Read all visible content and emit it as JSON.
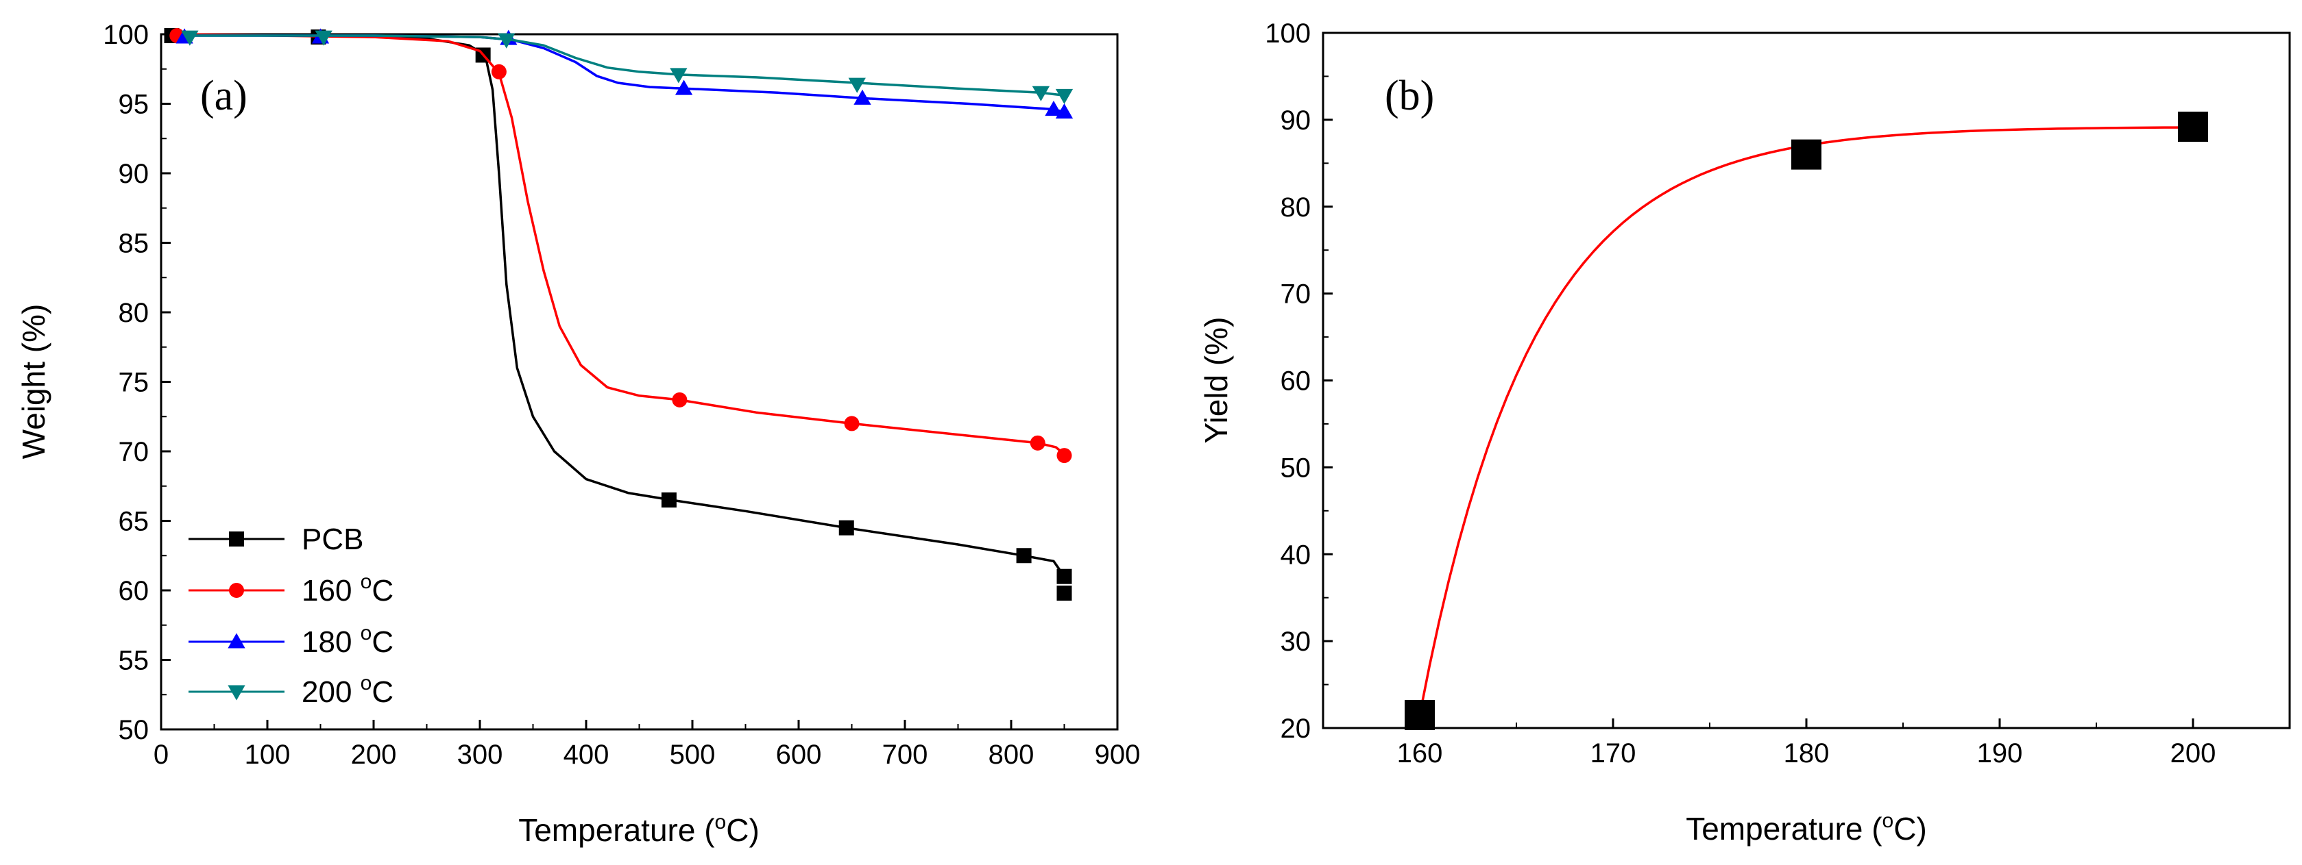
{
  "chart_data": [
    {
      "type": "line",
      "panel_label": "(a)",
      "title": "",
      "xlabel_main": "Temperature (",
      "xlabel_sup": "o",
      "xlabel_end": "C)",
      "ylabel": "Weight (%)",
      "xlim": [
        0,
        900
      ],
      "ylim": [
        50,
        100
      ],
      "xticks": [
        0,
        100,
        200,
        300,
        400,
        500,
        600,
        700,
        800,
        900
      ],
      "yticks": [
        50,
        55,
        60,
        65,
        70,
        75,
        80,
        85,
        90,
        95,
        100
      ],
      "legend_position": "bottom-left",
      "series": [
        {
          "name": "PCB",
          "legend_main": "PCB",
          "legend_sup": "",
          "legend_end": "",
          "color": "#000000",
          "marker": "square",
          "curve": [
            [
              10,
              100
            ],
            [
              150,
              99.9
            ],
            [
              250,
              99.7
            ],
            [
              290,
              99.2
            ],
            [
              305,
              98.5
            ],
            [
              312,
              96
            ],
            [
              318,
              90
            ],
            [
              325,
              82
            ],
            [
              335,
              76
            ],
            [
              350,
              72.5
            ],
            [
              370,
              70
            ],
            [
              400,
              68
            ],
            [
              440,
              67
            ],
            [
              480,
              66.5
            ],
            [
              550,
              65.7
            ],
            [
              645,
              64.5
            ],
            [
              750,
              63.3
            ],
            [
              812,
              62.5
            ],
            [
              840,
              62.1
            ],
            [
              850,
              61
            ]
          ],
          "markers": [
            [
              10,
              99.9
            ],
            [
              148,
              99.8
            ],
            [
              303,
              98.5
            ],
            [
              478,
              66.5
            ],
            [
              645,
              64.5
            ],
            [
              812,
              62.5
            ],
            [
              850,
              61
            ],
            [
              850,
              59.8
            ]
          ]
        },
        {
          "name": "160 °C",
          "legend_main": "160 ",
          "legend_sup": "o",
          "legend_end": "C",
          "color": "#ff0000",
          "marker": "circle",
          "curve": [
            [
              15,
              100
            ],
            [
              200,
              99.8
            ],
            [
              270,
              99.5
            ],
            [
              300,
              98.8
            ],
            [
              318,
              97.2
            ],
            [
              330,
              94
            ],
            [
              345,
              88
            ],
            [
              360,
              83
            ],
            [
              375,
              79
            ],
            [
              395,
              76.2
            ],
            [
              420,
              74.6
            ],
            [
              450,
              74
            ],
            [
              488,
              73.7
            ],
            [
              560,
              72.8
            ],
            [
              650,
              72
            ],
            [
              750,
              71.2
            ],
            [
              825,
              70.6
            ],
            [
              842,
              70.3
            ],
            [
              850,
              69.8
            ]
          ],
          "markers": [
            [
              15,
              99.9
            ],
            [
              318,
              97.3
            ],
            [
              488,
              73.7
            ],
            [
              650,
              72
            ],
            [
              825,
              70.6
            ],
            [
              850,
              69.7
            ]
          ]
        },
        {
          "name": "180 °C",
          "legend_main": "180 ",
          "legend_sup": "o",
          "legend_end": "C",
          "color": "#0000ff",
          "marker": "triangle-up",
          "curve": [
            [
              20,
              99.9
            ],
            [
              200,
              99.9
            ],
            [
              300,
              99.8
            ],
            [
              330,
              99.6
            ],
            [
              360,
              99
            ],
            [
              390,
              98
            ],
            [
              410,
              97
            ],
            [
              430,
              96.5
            ],
            [
              460,
              96.2
            ],
            [
              492,
              96.1
            ],
            [
              580,
              95.8
            ],
            [
              660,
              95.4
            ],
            [
              760,
              95
            ],
            [
              840,
              94.6
            ],
            [
              850,
              94.4
            ]
          ],
          "markers": [
            [
              22,
              99.8
            ],
            [
              150,
              99.8
            ],
            [
              327,
              99.7
            ],
            [
              492,
              96.1
            ],
            [
              660,
              95.4
            ],
            [
              840,
              94.6
            ],
            [
              850,
              94.4
            ]
          ]
        },
        {
          "name": "200 °C",
          "legend_main": "200 ",
          "legend_sup": "o",
          "legend_end": "C",
          "color": "#008080",
          "marker": "triangle-down",
          "curve": [
            [
              25,
              99.9
            ],
            [
              200,
              99.9
            ],
            [
              300,
              99.8
            ],
            [
              330,
              99.6
            ],
            [
              360,
              99.2
            ],
            [
              390,
              98.3
            ],
            [
              420,
              97.6
            ],
            [
              450,
              97.3
            ],
            [
              487,
              97.1
            ],
            [
              560,
              96.9
            ],
            [
              655,
              96.5
            ],
            [
              750,
              96.1
            ],
            [
              828,
              95.8
            ],
            [
              850,
              95.6
            ]
          ],
          "markers": [
            [
              27,
              99.8
            ],
            [
              153,
              99.8
            ],
            [
              325,
              99.6
            ],
            [
              487,
              97.1
            ],
            [
              655,
              96.4
            ],
            [
              828,
              95.8
            ],
            [
              850,
              95.6
            ]
          ]
        }
      ]
    },
    {
      "type": "line",
      "panel_label": "(b)",
      "title": "",
      "xlabel_main": "Temperature (",
      "xlabel_sup": "o",
      "xlabel_end": "C)",
      "ylabel": "Yield (%)",
      "xlim": [
        155,
        205
      ],
      "ylim": [
        20,
        100
      ],
      "xticks": [
        160,
        170,
        180,
        190,
        200
      ],
      "yticks": [
        20,
        30,
        40,
        50,
        60,
        70,
        80,
        90,
        100
      ],
      "series": [
        {
          "name": "Yield",
          "marker_color": "#000000",
          "line_color": "#ff0000",
          "marker": "square",
          "points": [
            [
              160,
              21.5
            ],
            [
              180,
              86
            ],
            [
              200,
              89.2
            ]
          ],
          "fit_model": {
            "asymptote": 89.2,
            "amplitude": 67.7,
            "rate": 0.1725,
            "x0": 160
          }
        }
      ]
    }
  ]
}
